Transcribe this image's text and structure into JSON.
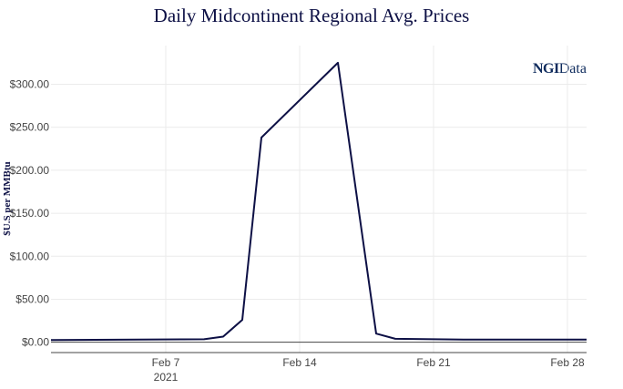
{
  "chart_data": {
    "type": "line",
    "title": "Daily Midcontinent Regional Avg. Prices",
    "xlabel": "",
    "ylabel": "$U.S per MMBtu",
    "xlim": [
      "2021-02-01",
      "2021-03-01"
    ],
    "ylim": [
      -12,
      345
    ],
    "y_ticks": [
      0,
      50,
      100,
      150,
      200,
      250,
      300
    ],
    "y_tick_labels": [
      "$0.00",
      "$50.00",
      "$100.00",
      "$150.00",
      "$200.00",
      "$250.00",
      "$300.00"
    ],
    "x_ticks": [
      "2021-02-07",
      "2021-02-14",
      "2021-02-21",
      "2021-02-28"
    ],
    "x_tick_labels": [
      "Feb 7",
      "Feb 14",
      "Feb 21",
      "Feb 28"
    ],
    "x_tick_sublabel": "2021",
    "grid": true,
    "line_color": "#0d1045",
    "series": [
      {
        "x": [
          "2021-02-01",
          "2021-02-09",
          "2021-02-10",
          "2021-02-11",
          "2021-02-12",
          "2021-02-16",
          "2021-02-18",
          "2021-02-19",
          "2021-02-23",
          "2021-02-26",
          "2021-03-01"
        ],
        "values": [
          2.5,
          3.5,
          6.5,
          26,
          238,
          325,
          10,
          4,
          3,
          3,
          3
        ]
      }
    ]
  },
  "logo": {
    "ngi": "NGI",
    "data": "Data"
  }
}
